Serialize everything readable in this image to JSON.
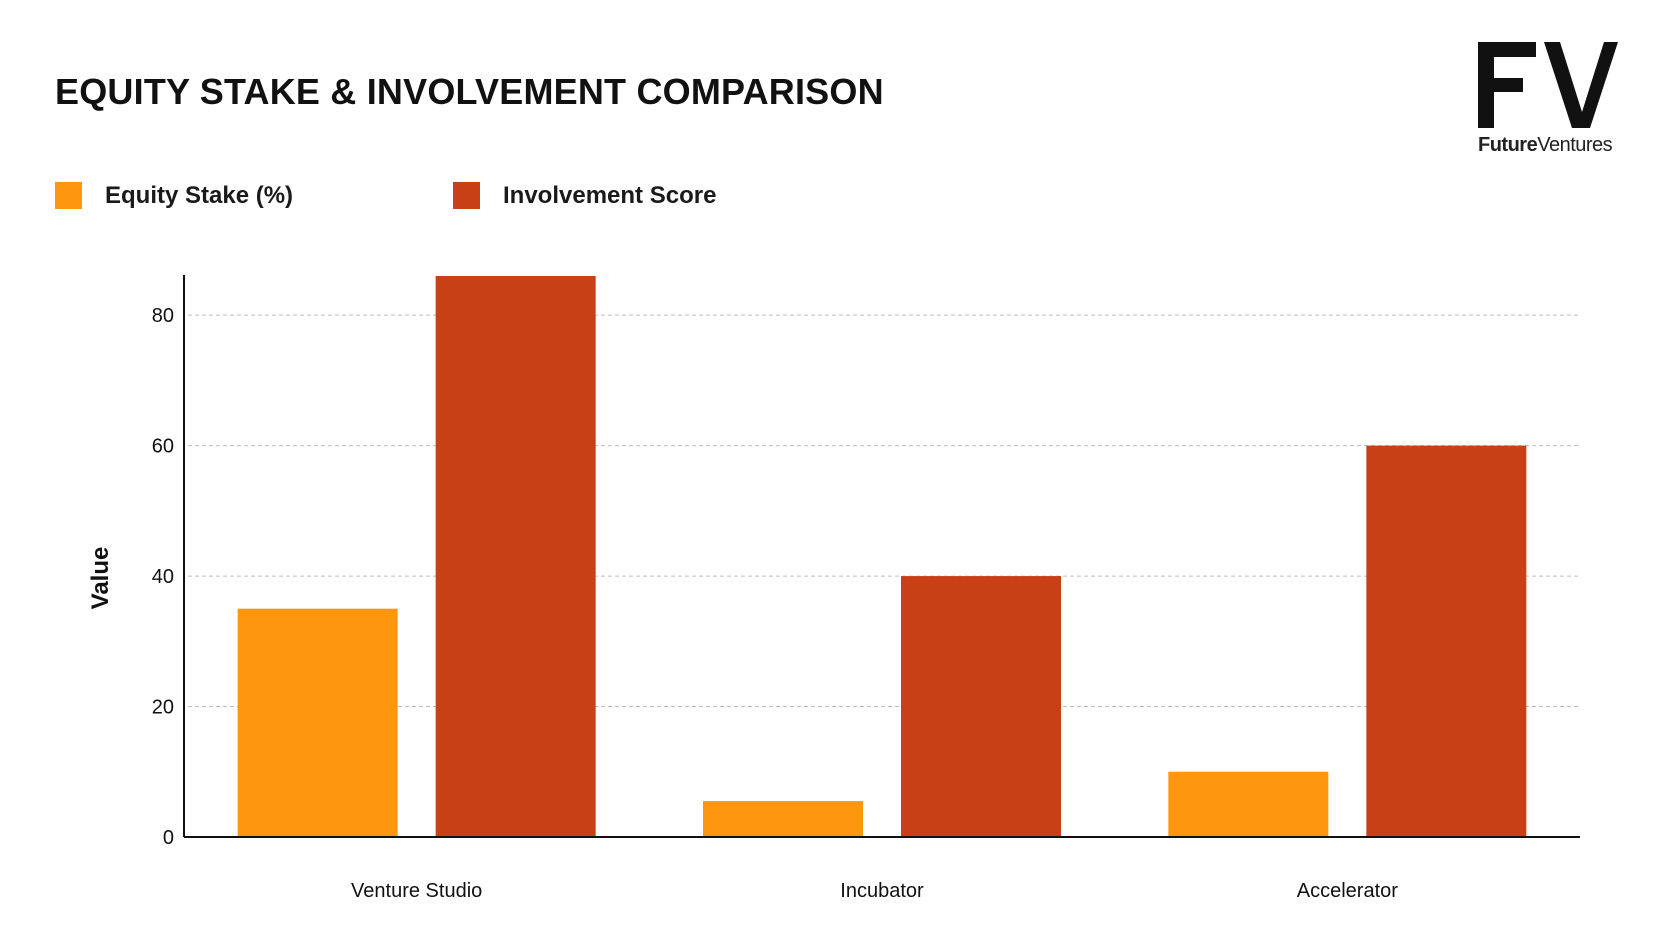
{
  "chart_data": {
    "type": "bar",
    "title": "EQUITY STAKE & INVOLVEMENT COMPARISON",
    "categories": [
      "Venture Studio",
      "Incubator",
      "Accelerator"
    ],
    "series": [
      {
        "name": "Equity Stake (%)",
        "values": [
          35,
          5.5,
          10
        ],
        "color": "#FF9610"
      },
      {
        "name": "Involvement Score",
        "values": [
          86,
          40,
          60
        ],
        "color": "#C84016"
      }
    ],
    "xlabel": "",
    "ylabel": "Value",
    "ylim": [
      0,
      86
    ],
    "yticks": [
      0,
      20,
      40,
      60,
      80
    ],
    "grid": true,
    "grid_style": "dashed horizontal",
    "legend_position": "top-left"
  },
  "logo": {
    "mark": "FV",
    "word1": "Future",
    "word2": "Ventures",
    "icon": "fv-logo-mark"
  },
  "colors": {
    "axis": "#111111",
    "grid": "#bdbdbd",
    "text": "#111111"
  }
}
